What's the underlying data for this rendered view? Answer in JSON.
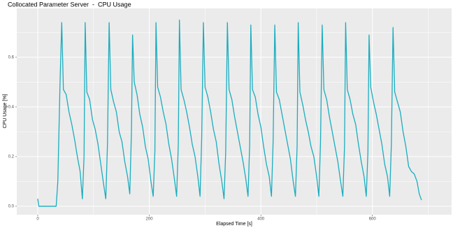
{
  "chart_data": {
    "type": "line",
    "title": "Collocated Parameter Server  -  CPU Usage",
    "x_label": "Elapsed Time [s]",
    "y_label": "CPU Usage [%]",
    "xlim": [
      -37.6,
      742
    ],
    "ylim": [
      -0.034,
      0.797
    ],
    "xticks": [
      0,
      200,
      400,
      600
    ],
    "yticks": [
      {
        "value": 0,
        "label": "0.0"
      },
      0.2,
      0.4,
      0.6
    ],
    "xminor_ticks": [
      100,
      300,
      500,
      700
    ],
    "yminor_ticks": [
      0.1,
      0.3,
      0.5,
      0.7
    ],
    "grid": true,
    "series": [
      {
        "color": "#19adbf",
        "x": [
          0,
          2,
          33,
          36,
          40,
          43,
          46,
          51,
          56,
          61,
          66,
          71,
          76,
          80,
          83,
          85,
          88,
          93,
          98,
          103,
          108,
          113,
          118,
          122,
          125,
          128,
          131,
          136,
          141,
          146,
          151,
          156,
          161,
          165,
          168,
          170,
          173,
          178,
          183,
          188,
          193,
          198,
          203,
          207,
          210,
          212,
          215,
          220,
          225,
          230,
          235,
          240,
          245,
          249,
          252,
          254,
          257,
          262,
          267,
          272,
          277,
          282,
          287,
          291,
          294,
          297,
          300,
          305,
          310,
          315,
          320,
          325,
          330,
          334,
          337,
          340,
          343,
          348,
          353,
          358,
          363,
          368,
          373,
          377,
          380,
          382,
          385,
          390,
          395,
          400,
          405,
          410,
          415,
          419,
          422,
          425,
          428,
          433,
          438,
          443,
          448,
          453,
          458,
          462,
          465,
          467,
          470,
          475,
          480,
          485,
          490,
          495,
          500,
          504,
          507,
          510,
          513,
          518,
          523,
          528,
          533,
          538,
          543,
          547,
          550,
          552,
          555,
          560,
          565,
          570,
          575,
          580,
          585,
          589,
          592,
          594,
          597,
          602,
          607,
          612,
          617,
          622,
          627,
          631,
          634,
          637,
          640,
          645,
          650,
          655,
          660,
          665,
          670,
          675,
          680,
          684,
          688
        ],
        "values": [
          0.03,
          0.0,
          0.0,
          0.1,
          0.5,
          0.74,
          0.47,
          0.45,
          0.38,
          0.33,
          0.27,
          0.2,
          0.14,
          0.03,
          0.2,
          0.74,
          0.46,
          0.43,
          0.35,
          0.31,
          0.25,
          0.17,
          0.09,
          0.03,
          0.25,
          0.74,
          0.47,
          0.42,
          0.38,
          0.3,
          0.26,
          0.18,
          0.12,
          0.05,
          0.3,
          0.69,
          0.5,
          0.45,
          0.37,
          0.32,
          0.24,
          0.19,
          0.1,
          0.04,
          0.22,
          0.74,
          0.48,
          0.44,
          0.38,
          0.33,
          0.25,
          0.19,
          0.11,
          0.04,
          0.25,
          0.75,
          0.47,
          0.43,
          0.38,
          0.32,
          0.25,
          0.2,
          0.12,
          0.04,
          0.28,
          0.74,
          0.48,
          0.44,
          0.38,
          0.31,
          0.26,
          0.17,
          0.1,
          0.03,
          0.22,
          0.74,
          0.47,
          0.43,
          0.36,
          0.3,
          0.24,
          0.18,
          0.11,
          0.04,
          0.25,
          0.73,
          0.47,
          0.44,
          0.37,
          0.32,
          0.24,
          0.17,
          0.12,
          0.04,
          0.26,
          0.73,
          0.46,
          0.43,
          0.37,
          0.31,
          0.25,
          0.19,
          0.1,
          0.04,
          0.24,
          0.74,
          0.46,
          0.41,
          0.35,
          0.3,
          0.24,
          0.2,
          0.12,
          0.04,
          0.26,
          0.73,
          0.47,
          0.43,
          0.36,
          0.3,
          0.24,
          0.18,
          0.1,
          0.04,
          0.24,
          0.74,
          0.47,
          0.43,
          0.37,
          0.33,
          0.25,
          0.18,
          0.12,
          0.04,
          0.22,
          0.69,
          0.48,
          0.42,
          0.37,
          0.31,
          0.25,
          0.17,
          0.12,
          0.04,
          0.25,
          0.72,
          0.46,
          0.42,
          0.38,
          0.3,
          0.24,
          0.16,
          0.14,
          0.13,
          0.1,
          0.05,
          0.025
        ]
      }
    ]
  }
}
